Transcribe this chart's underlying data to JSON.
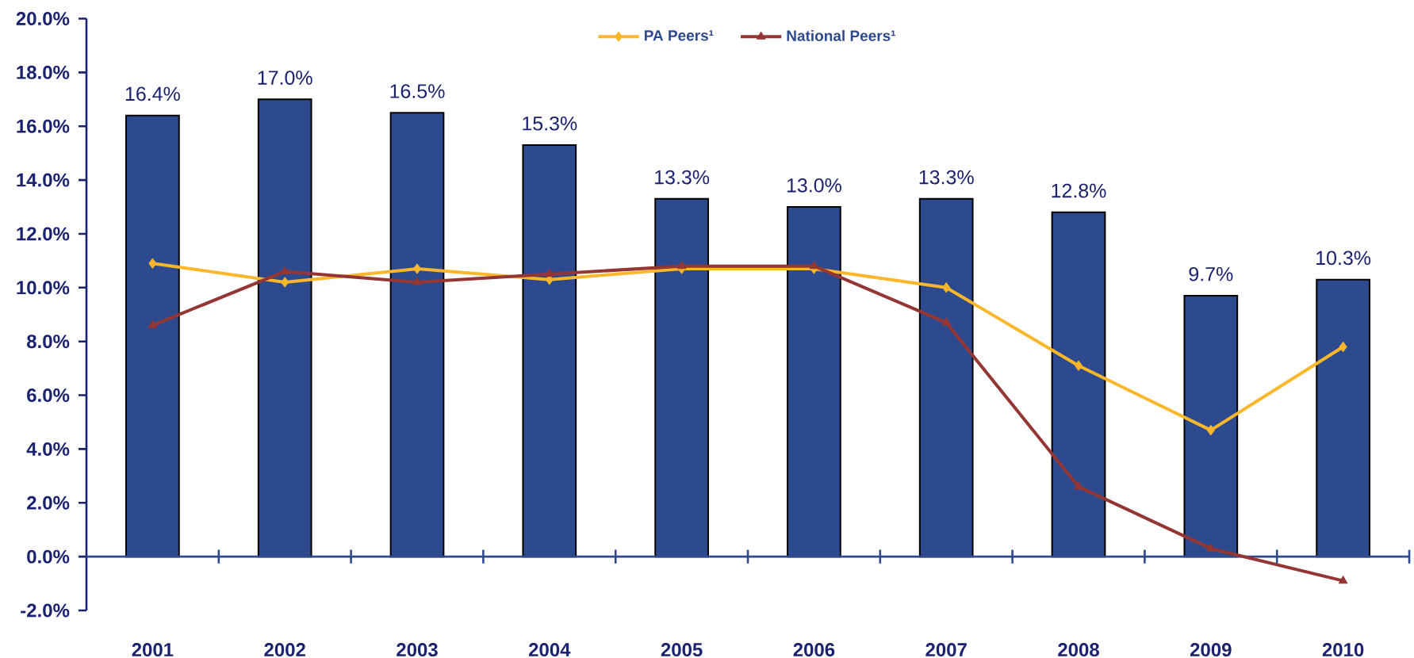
{
  "chart_data": {
    "type": "bar",
    "categories": [
      "2001",
      "2002",
      "2003",
      "2004",
      "2005",
      "2006",
      "2007",
      "2008",
      "2009",
      "2010"
    ],
    "ylim": [
      -2,
      20
    ],
    "yticks": [
      {
        "value": -2,
        "label": "-2.0%"
      },
      {
        "value": 0,
        "label": "0.0%"
      },
      {
        "value": 2,
        "label": "2.0%"
      },
      {
        "value": 4,
        "label": "4.0%"
      },
      {
        "value": 6,
        "label": "6.0%"
      },
      {
        "value": 8,
        "label": "8.0%"
      },
      {
        "value": 10,
        "label": "10.0%"
      },
      {
        "value": 12,
        "label": "12.0%"
      },
      {
        "value": 14,
        "label": "14.0%"
      },
      {
        "value": 16,
        "label": "16.0%"
      },
      {
        "value": 18,
        "label": "18.0%"
      },
      {
        "value": 20,
        "label": "20.0%"
      }
    ],
    "legend": "top",
    "ref_lines": [
      {
        "axis": "y",
        "value": 0,
        "color": "#2e4a8e"
      }
    ],
    "series": [
      {
        "color": "#2e4a8e",
        "values": [
          16.4,
          17.0,
          16.5,
          15.3,
          13.3,
          13.0,
          13.3,
          12.8,
          9.7,
          10.3
        ],
        "value_labels": [
          "16.4%",
          "17.0%",
          "16.5%",
          "15.3%",
          "13.3%",
          "13.0%",
          "13.3%",
          "12.8%",
          "9.7%",
          "10.3%"
        ]
      },
      {
        "name": "PA Peers¹",
        "type": "line",
        "color": "#fbb72c",
        "marker": "diamond",
        "values": [
          10.9,
          10.2,
          10.7,
          10.3,
          10.7,
          10.7,
          10.0,
          7.1,
          4.7,
          7.8
        ]
      },
      {
        "name": "National Peers¹",
        "type": "line",
        "color": "#943634",
        "marker": "triangle",
        "values": [
          8.6,
          10.6,
          10.2,
          10.5,
          10.8,
          10.8,
          8.7,
          2.6,
          0.3,
          -0.9
        ]
      }
    ]
  }
}
